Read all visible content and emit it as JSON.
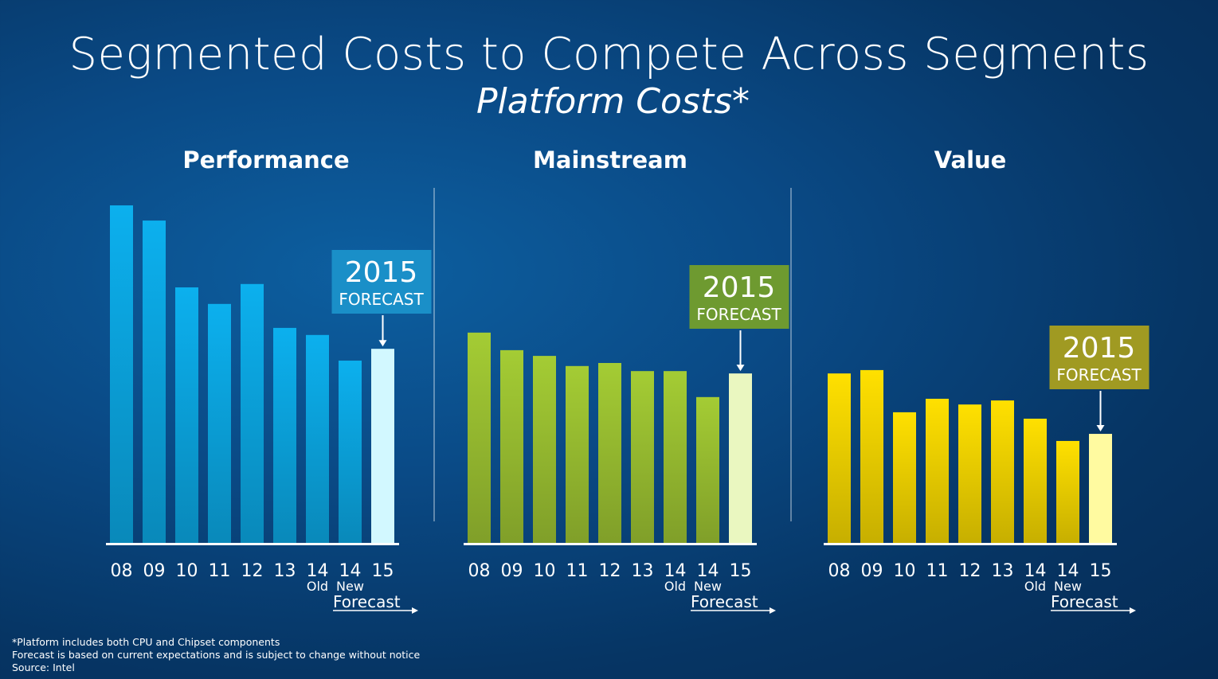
{
  "title": "Segmented Costs to Compete Across Segments",
  "subtitle": "Platform Costs*",
  "footnotes": [
    "*Platform includes both CPU and Chipset components",
    "Forecast  is based on current expectations and is subject to change without notice",
    "Source: Intel"
  ],
  "chart_data": [
    {
      "type": "bar",
      "title": "Performance",
      "categories": [
        "08",
        "09",
        "10",
        "11",
        "12",
        "13",
        "14",
        "14",
        "15"
      ],
      "sublabels": [
        "",
        "",
        "",
        "",
        "",
        "",
        "Old",
        "New",
        ""
      ],
      "forecast_label": "Forecast",
      "callout": {
        "year": "2015",
        "text": "FORECAST"
      },
      "values": [
        100,
        95.5,
        75.7,
        70.8,
        76.7,
        63.7,
        61.6,
        54,
        57.5
      ],
      "ylabel": "relative platform cost (no scale shown)",
      "ylim": [
        0,
        100
      ],
      "colors": {
        "bar": "#0cb0ee",
        "forecast_bar": "#d2f8ff",
        "callout": "#1a8fc8"
      }
    },
    {
      "type": "bar",
      "title": "Mainstream",
      "categories": [
        "08",
        "09",
        "10",
        "11",
        "12",
        "13",
        "14",
        "14",
        "15"
      ],
      "sublabels": [
        "",
        "",
        "",
        "",
        "",
        "",
        "Old",
        "New",
        ""
      ],
      "forecast_label": "Forecast",
      "callout": {
        "year": "2015",
        "text": "FORECAST"
      },
      "values": [
        62.3,
        57.1,
        55.4,
        52.4,
        53.3,
        50.9,
        50.9,
        43.2,
        50.2
      ],
      "ylabel": "relative platform cost (no scale shown)",
      "ylim": [
        0,
        100
      ],
      "colors": {
        "bar": "#a4cc34",
        "forecast_bar": "#eaf7c0",
        "callout": "#6e9a30"
      }
    },
    {
      "type": "bar",
      "title": "Value",
      "categories": [
        "08",
        "09",
        "10",
        "11",
        "12",
        "13",
        "14",
        "14",
        "15"
      ],
      "sublabels": [
        "",
        "",
        "",
        "",
        "",
        "",
        "Old",
        "New",
        ""
      ],
      "forecast_label": "Forecast",
      "callout": {
        "year": "2015",
        "text": "FORECAST"
      },
      "values": [
        50.2,
        51.2,
        38.7,
        42.7,
        41,
        42.2,
        36.8,
        30.2,
        32.3
      ],
      "ylabel": "relative platform cost (no scale shown)",
      "ylim": [
        0,
        100
      ],
      "colors": {
        "bar": "#ffe000",
        "forecast_bar": "#fffaa0",
        "callout": "#a09a22"
      }
    }
  ]
}
